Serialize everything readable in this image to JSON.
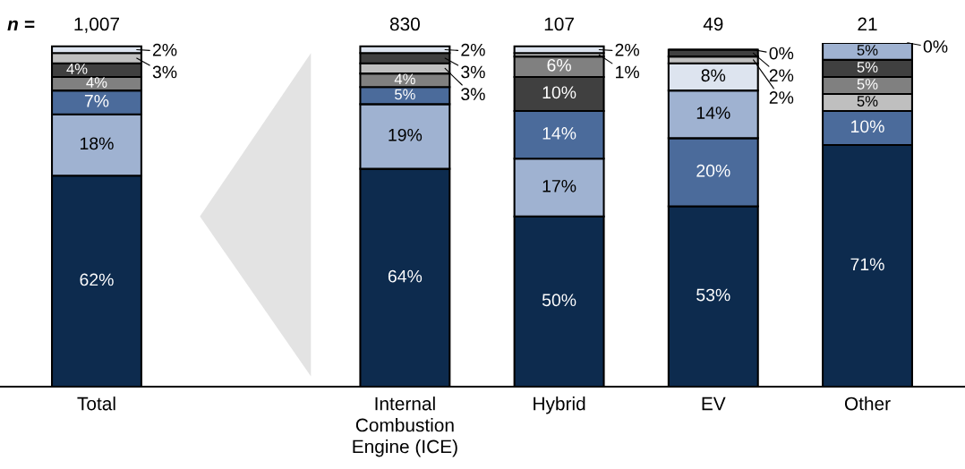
{
  "chart_data": {
    "type": "bar",
    "stacked": true,
    "categories": [
      "Total",
      null,
      "Internal\nCombustion\nEngine (ICE)",
      "Hybrid",
      "EV",
      "Other"
    ],
    "series": [
      {
        "values": [
          62,
          null,
          64,
          50,
          53,
          71
        ],
        "colors": [
          "#0d2b4e",
          null,
          "#0d2b4e",
          "#0d2b4e",
          "#0d2b4e",
          "#0d2b4e"
        ],
        "value_labels": [
          "62%",
          null,
          "64%",
          "50%",
          "53%",
          "71%"
        ]
      },
      {
        "values": [
          18,
          null,
          19,
          17,
          20,
          10
        ],
        "colors": [
          "#9fb2d1",
          null,
          "#9fb2d1",
          "#9fb2d1",
          "#4b6b9b",
          "#4b6b9b"
        ],
        "value_labels": [
          "18%",
          null,
          "19%",
          "17%",
          "20%",
          "10%"
        ]
      },
      {
        "values": [
          7,
          null,
          5,
          14,
          14,
          5
        ],
        "colors": [
          "#4b6b9b",
          null,
          "#4b6b9b",
          "#4b6b9b",
          "#9fb2d1",
          "#bfbfbf"
        ],
        "value_labels": [
          "7%",
          null,
          "5%",
          "14%",
          "14%",
          "5%"
        ]
      },
      {
        "values": [
          4,
          null,
          4,
          10,
          8,
          5
        ],
        "colors": [
          "#808080",
          null,
          "#808080",
          "#404040",
          "#dde4ef",
          "#808080"
        ],
        "value_labels": [
          "4%",
          null,
          "4%",
          "10%",
          "8%",
          "5%"
        ]
      },
      {
        "values": [
          4,
          null,
          3,
          6,
          2,
          5
        ],
        "colors": [
          "#404040",
          null,
          "#bfbfbf",
          "#808080",
          "#bfbfbf",
          "#404040"
        ],
        "value_labels": [
          "4%",
          null,
          "3%",
          "6%",
          "2%",
          "5%"
        ]
      },
      {
        "values": [
          3,
          null,
          3,
          1,
          2,
          5
        ],
        "colors": [
          "#bfbfbf",
          null,
          "#404040",
          "#bfbfbf",
          "#404040",
          "#9fb2d1"
        ],
        "value_labels": [
          "3%",
          null,
          "3%",
          "1%",
          "2%",
          "5%"
        ]
      },
      {
        "values": [
          2,
          null,
          2,
          2,
          0,
          0
        ],
        "colors": [
          "#dde4ef",
          null,
          "#dde4ef",
          "#dde4ef",
          "#000000",
          "#000000"
        ],
        "value_labels": [
          "2%",
          null,
          "2%",
          "2%",
          "0%",
          "0%"
        ]
      }
    ],
    "annotations": [
      "n =",
      "1,007",
      "830",
      "107",
      "49",
      "21"
    ]
  }
}
